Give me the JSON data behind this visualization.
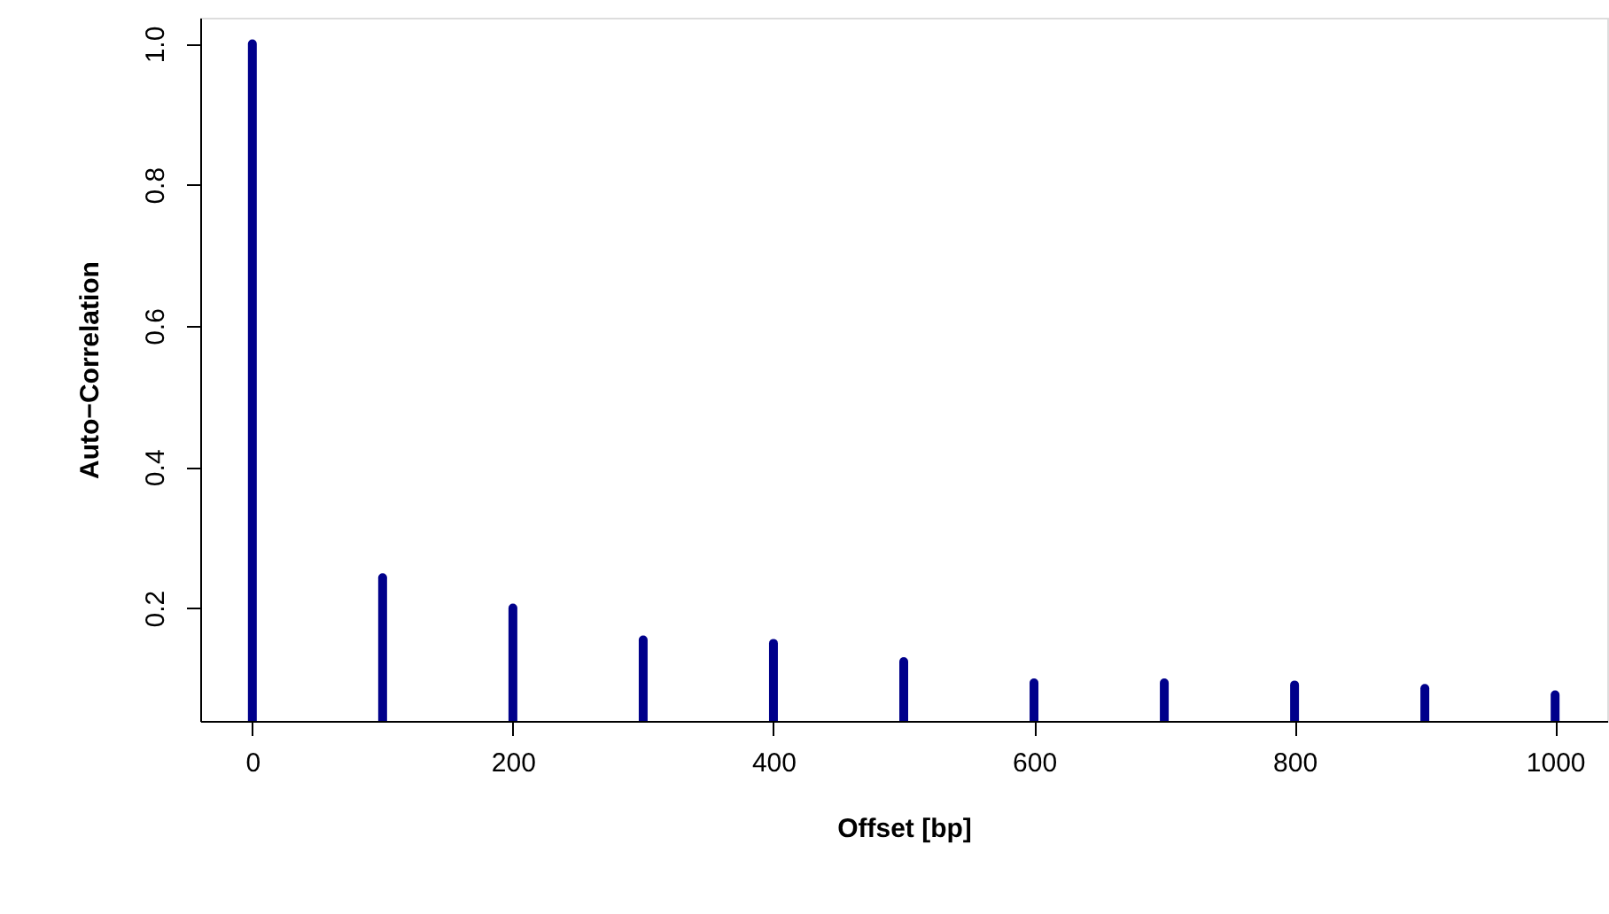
{
  "chart_data": {
    "type": "bar",
    "xlabel": "Offset [bp]",
    "ylabel": "Auto−Correlation",
    "x": [
      0,
      100,
      200,
      300,
      400,
      500,
      600,
      700,
      800,
      900,
      1000
    ],
    "series": [
      {
        "color": "#00008b",
        "values": [
          1.0,
          0.243,
          0.2,
          0.155,
          0.15,
          0.124,
          0.094,
          0.094,
          0.091,
          0.086,
          0.077
        ]
      }
    ],
    "xlim": [
      -40,
      1040
    ],
    "xticks": [
      0,
      200,
      400,
      600,
      800,
      1000
    ],
    "ylim": [
      0.04,
      1.037
    ],
    "yticks": [
      {
        "value": 0.2,
        "label": "0.2"
      },
      {
        "value": 0.4,
        "label": "0.4"
      },
      {
        "value": 0.6,
        "label": "0.6"
      },
      {
        "value": 0.8,
        "label": "0.8"
      },
      {
        "value": 1.0,
        "label": "1.0"
      }
    ],
    "grid": false
  }
}
